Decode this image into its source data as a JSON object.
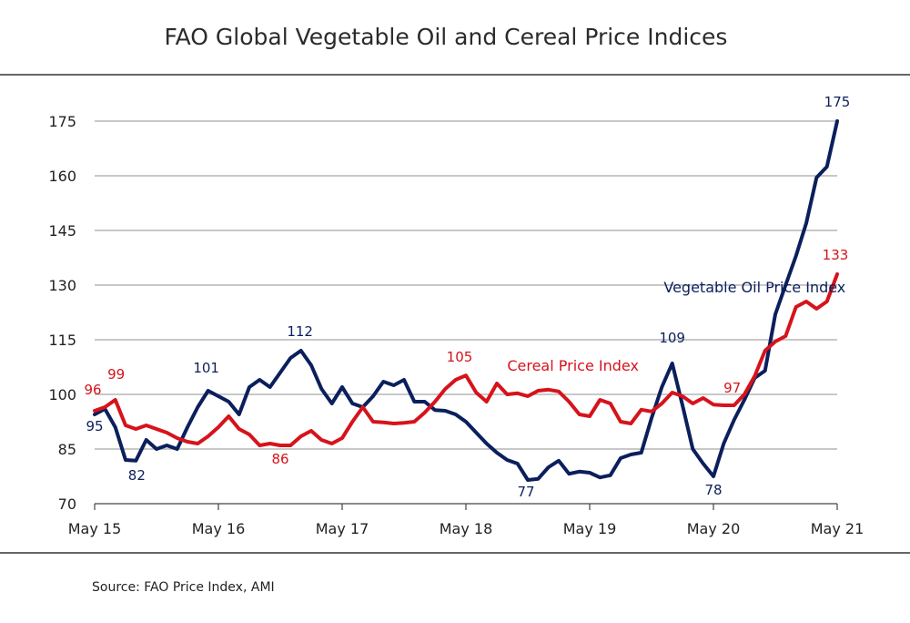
{
  "chart_data": {
    "type": "line",
    "title": "FAO Global Vegetable Oil and Cereal Price Indices",
    "source": "Source: FAO Price Index, AMI",
    "ylim": [
      70,
      175
    ],
    "yticks": [
      70,
      85,
      100,
      115,
      130,
      145,
      160,
      175
    ],
    "xlim": [
      0,
      72
    ],
    "xticks": [
      {
        "label": "May 15",
        "x": 0
      },
      {
        "label": "May 16",
        "x": 12
      },
      {
        "label": "May 17",
        "x": 24
      },
      {
        "label": "May 18",
        "x": 36
      },
      {
        "label": "May 19",
        "x": 48
      },
      {
        "label": "May 20",
        "x": 60
      },
      {
        "label": "May 21",
        "x": 72
      }
    ],
    "grid": true,
    "series": [
      {
        "name": "Vegetable Oil Price Index",
        "color": "#0b1f5c",
        "values": [
          94.5,
          96,
          91,
          82,
          81.8,
          87.5,
          85,
          86,
          85,
          91,
          96.5,
          101,
          99.5,
          98,
          94.5,
          102,
          104,
          102,
          106,
          110,
          112,
          108,
          101.5,
          97.5,
          102,
          97.5,
          96.5,
          99.5,
          103.5,
          102.5,
          104,
          98,
          98,
          95.7,
          95.5,
          94.5,
          92.5,
          89.5,
          86.5,
          84,
          82,
          81,
          76.5,
          76.8,
          80,
          81.8,
          78.2,
          78.8,
          78.5,
          77.2,
          77.8,
          82.5,
          83.5,
          84,
          93.5,
          102,
          108.5,
          97,
          85,
          81,
          77.5,
          86.5,
          93,
          98.5,
          104.5,
          106.5,
          122,
          130,
          138,
          147,
          159.5,
          162.5,
          175
        ]
      },
      {
        "name": "Cereal Price Index",
        "color": "#d6131b",
        "values": [
          95.5,
          96.5,
          98.5,
          91.5,
          90.5,
          91.5,
          90.5,
          89.5,
          88,
          87,
          86.5,
          88.5,
          91,
          94,
          90.5,
          89,
          86,
          86.5,
          86,
          86,
          88.5,
          90,
          87.5,
          86.5,
          88,
          92.5,
          96.5,
          92.5,
          92.3,
          92,
          92.2,
          92.5,
          95,
          98,
          101.5,
          104,
          105.2,
          100.5,
          98,
          103,
          100,
          100.3,
          99.5,
          101,
          101.3,
          100.8,
          98,
          94.5,
          94,
          98.5,
          97.5,
          92.5,
          92,
          95.8,
          95.3,
          97.5,
          100.5,
          99.5,
          97.5,
          99,
          97.2,
          97,
          97,
          100,
          105,
          112,
          114.5,
          116,
          124,
          125.5,
          123.5,
          125.5,
          133
        ]
      }
    ],
    "data_labels": [
      {
        "series": 0,
        "x": 0,
        "value": 95,
        "text": "95"
      },
      {
        "series": 0,
        "x": 4,
        "value": 82,
        "text": "82"
      },
      {
        "series": 0,
        "x": 11,
        "value": 101,
        "text": "101"
      },
      {
        "series": 0,
        "x": 20,
        "value": 112,
        "text": "112"
      },
      {
        "series": 0,
        "x": 42,
        "value": 77,
        "text": "77"
      },
      {
        "series": 0,
        "x": 56,
        "value": 109,
        "text": "109"
      },
      {
        "series": 0,
        "x": 60,
        "value": 78,
        "text": "78"
      },
      {
        "series": 0,
        "x": 72,
        "value": 175,
        "text": "175"
      },
      {
        "series": 1,
        "x": 0,
        "value": 96,
        "text": "96"
      },
      {
        "series": 1,
        "x": 2,
        "value": 99,
        "text": "99"
      },
      {
        "series": 1,
        "x": 18,
        "value": 86,
        "text": "86"
      },
      {
        "series": 1,
        "x": 36,
        "value": 105,
        "text": "105"
      },
      {
        "series": 1,
        "x": 62,
        "value": 97,
        "text": "97"
      },
      {
        "series": 1,
        "x": 72,
        "value": 133,
        "text": "133"
      }
    ],
    "series_labels": [
      {
        "series": 0,
        "text": "Vegetable Oil Price Index"
      },
      {
        "series": 1,
        "text": "Cereal Price Index"
      }
    ]
  }
}
